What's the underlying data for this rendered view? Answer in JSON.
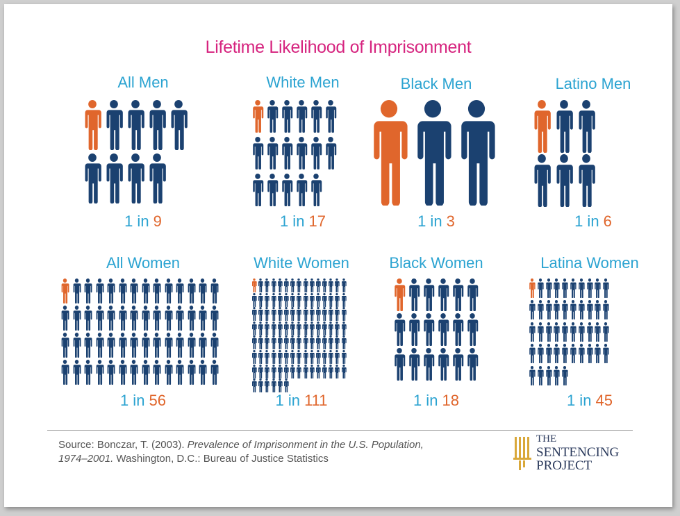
{
  "title": "Lifetime Likelihood of Imprisonment",
  "colors": {
    "highlight": "#e0662c",
    "base": "#1b4170",
    "label": "#2ba3d1",
    "title": "#d6247f"
  },
  "groups": [
    {
      "label": "All Men",
      "pre": "1 in",
      "num": "9",
      "total": 9
    },
    {
      "label": "White Men",
      "pre": "1 in",
      "num": "17",
      "total": 17
    },
    {
      "label": "Black Men",
      "pre": "1 in",
      "num": "3",
      "total": 3
    },
    {
      "label": "Latino Men",
      "pre": "1 in",
      "num": "6",
      "total": 6
    },
    {
      "label": "All Women",
      "pre": "1 in",
      "num": "56",
      "total": 56
    },
    {
      "label": "White Women",
      "pre": "1 in",
      "num": "111",
      "total": 111
    },
    {
      "label": "Black Women",
      "pre": "1 in",
      "num": "18",
      "total": 18
    },
    {
      "label": "Latina Women",
      "pre": "1 in",
      "num": "45",
      "total": 45
    }
  ],
  "source": {
    "prefix": "Source: Bonczar, T. (2003).",
    "italic": "Prevalence of Imprisonment in the U.S. Population, 1974–2001.",
    "suffix": "Washington, D.C.: Bureau of Justice Statistics"
  },
  "logo": {
    "line1": "THE",
    "line2": "SENTENCING",
    "line3": "PROJECT",
    "icon": "columns-icon"
  }
}
